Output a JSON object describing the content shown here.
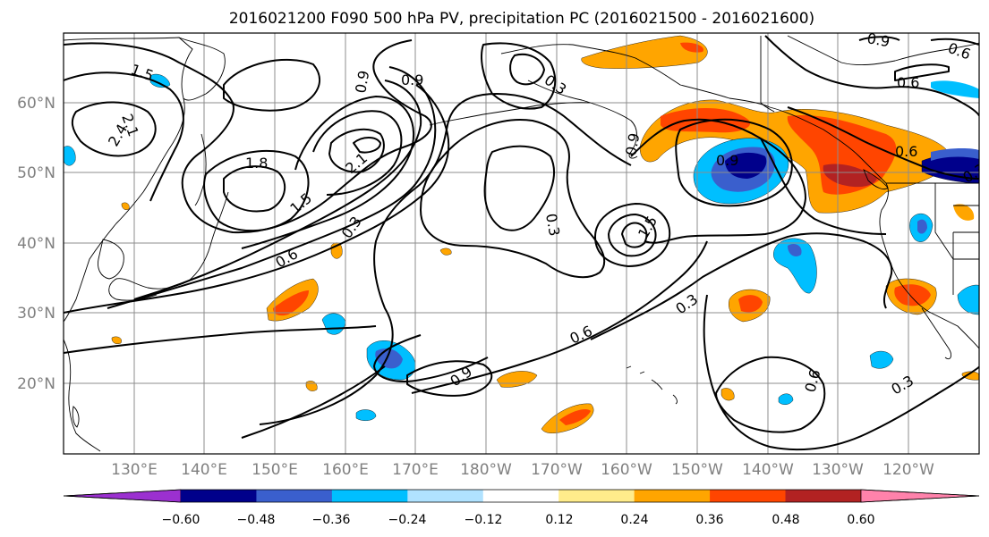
{
  "title": "2016021200 F090 500 hPa PV, precipitation PC (2016021500 - 2016021600)",
  "lat_labels": [
    "60°N",
    "50°N",
    "40°N",
    "30°N",
    "20°N"
  ],
  "lon_labels": [
    "130°E",
    "140°E",
    "150°E",
    "160°E",
    "170°E",
    "180°W",
    "170°W",
    "160°W",
    "150°W",
    "140°W",
    "130°W",
    "120°W"
  ],
  "colorbar": {
    "ticks": [
      "−0.60",
      "−0.48",
      "−0.36",
      "−0.24",
      "−0.12",
      "0.12",
      "0.24",
      "0.36",
      "0.48",
      "0.60"
    ],
    "colors": [
      "#9b30d0",
      "#00008b",
      "#3a5fcd",
      "#00bfff",
      "#b0e2ff",
      "#ffffff",
      "#ffec8b",
      "#ffa500",
      "#ff4500",
      "#b22222",
      "#ff82ab"
    ]
  },
  "contour_labels": [
    "1.5",
    "2.1",
    "2.4",
    "1.8",
    "2.1",
    "1.5",
    "0.9",
    "0.9",
    "0.6",
    "0.3",
    "0.3",
    "0.9",
    "0.3",
    "1.5",
    "0.9",
    "0.6",
    "0.6",
    "0.3",
    "0.9",
    "0.6",
    "0.3",
    "0.9",
    "0.6",
    "0.6",
    "0.3"
  ]
}
